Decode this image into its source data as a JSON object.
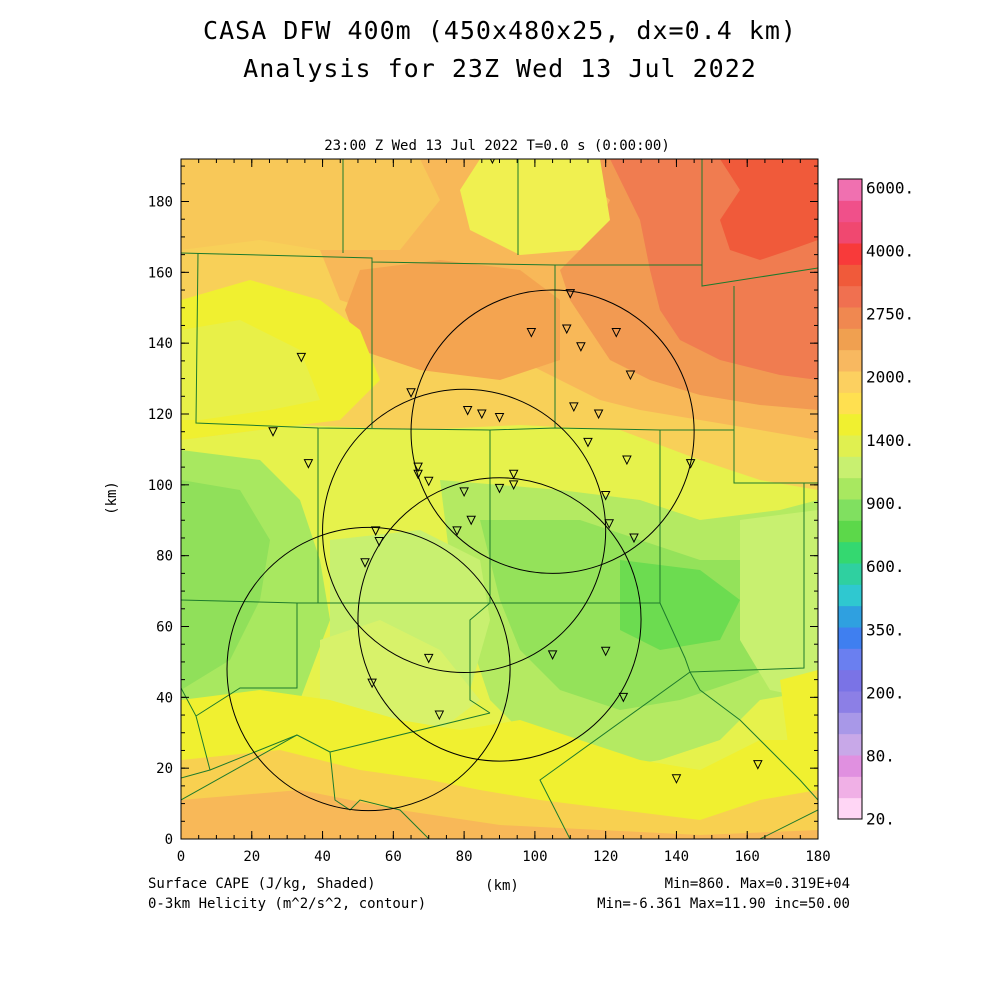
{
  "header": {
    "title_line1": "CASA DFW 400m (450x480x25, dx=0.4 km)",
    "title_line2": "Analysis for 23Z Wed 13 Jul 2022"
  },
  "plot": {
    "subtitle": "23:00 Z Wed 13 Jul 2022    T=0.0 s (0:00:00)",
    "x_axis_label": "(km)",
    "y_axis_label": "(km)",
    "x_ticks": [
      "0",
      "20",
      "40",
      "60",
      "80",
      "100",
      "120",
      "140",
      "160",
      "180"
    ],
    "y_ticks": [
      "0",
      "20",
      "40",
      "60",
      "80",
      "100",
      "120",
      "140",
      "160",
      "180"
    ],
    "x_range": [
      0,
      180
    ],
    "y_range": [
      0,
      192
    ]
  },
  "footer": {
    "left_line1": "Surface CAPE (J/kg, Shaded)",
    "left_line2": "0-3km Helicity (m^2/s^2, contour)",
    "right_line1": "Min=860. Max=0.319E+04",
    "right_line2": "Min=-6.361 Max=11.90 inc=50.00"
  },
  "colorbar": {
    "labels": [
      "6000.",
      "4000.",
      "2750.",
      "2000.",
      "1400.",
      "900.",
      "600.",
      "350.",
      "200.",
      "80.",
      "20."
    ],
    "colors": [
      "#ffd6f5",
      "#f0b0e6",
      "#e090e0",
      "#c8a8e8",
      "#a898e8",
      "#8c7fe6",
      "#7a73e6",
      "#6a7ff0",
      "#3f7ff0",
      "#2fa0e0",
      "#2fc8d0",
      "#2fd0a0",
      "#34d870",
      "#5cd84a",
      "#80e060",
      "#a8e860",
      "#c8f070",
      "#e0f050",
      "#f0f030",
      "#ffe050",
      "#fcd060",
      "#f8b860",
      "#f0a050",
      "#f08850",
      "#f07050",
      "#f05a3a",
      "#f83a3a",
      "#f04870",
      "#f0508a",
      "#f070b0"
    ]
  },
  "chart_data": {
    "type": "heatmap",
    "field": "Surface CAPE (J/kg, Shaded)",
    "contour_field": "0-3km Helicity (m^2/s^2, contour)",
    "cape_min": 860,
    "cape_max": 3190,
    "helicity_min": -6.361,
    "helicity_max": 11.9,
    "contour_increment": 50.0,
    "radar_rings": [
      {
        "center_km": [
          53,
          48
        ],
        "radius_km": 40
      },
      {
        "center_km": [
          80,
          87
        ],
        "radius_km": 40
      },
      {
        "center_km": [
          105,
          115
        ],
        "radius_km": 40
      },
      {
        "center_km": [
          90,
          62
        ],
        "radius_km": 40
      }
    ],
    "stations_km": [
      [
        88,
        192
      ],
      [
        110,
        154
      ],
      [
        99,
        143
      ],
      [
        109,
        144
      ],
      [
        113,
        139
      ],
      [
        123,
        143
      ],
      [
        127,
        131
      ],
      [
        34,
        136
      ],
      [
        65,
        126
      ],
      [
        81,
        121
      ],
      [
        85,
        120
      ],
      [
        90,
        119
      ],
      [
        111,
        122
      ],
      [
        118,
        120
      ],
      [
        26,
        115
      ],
      [
        115,
        112
      ],
      [
        126,
        107
      ],
      [
        144,
        106
      ],
      [
        36,
        106
      ],
      [
        67,
        105
      ],
      [
        67,
        103
      ],
      [
        70,
        101
      ],
      [
        94,
        103
      ],
      [
        94,
        100
      ],
      [
        90,
        99
      ],
      [
        80,
        98
      ],
      [
        120,
        97
      ],
      [
        82,
        90
      ],
      [
        121,
        89
      ],
      [
        78,
        87
      ],
      [
        128,
        85
      ],
      [
        55,
        87
      ],
      [
        56,
        84
      ],
      [
        52,
        78
      ],
      [
        70,
        51
      ],
      [
        105,
        52
      ],
      [
        120,
        53
      ],
      [
        54,
        44
      ],
      [
        125,
        40
      ],
      [
        73,
        35
      ],
      [
        140,
        17
      ],
      [
        163,
        21
      ]
    ]
  }
}
